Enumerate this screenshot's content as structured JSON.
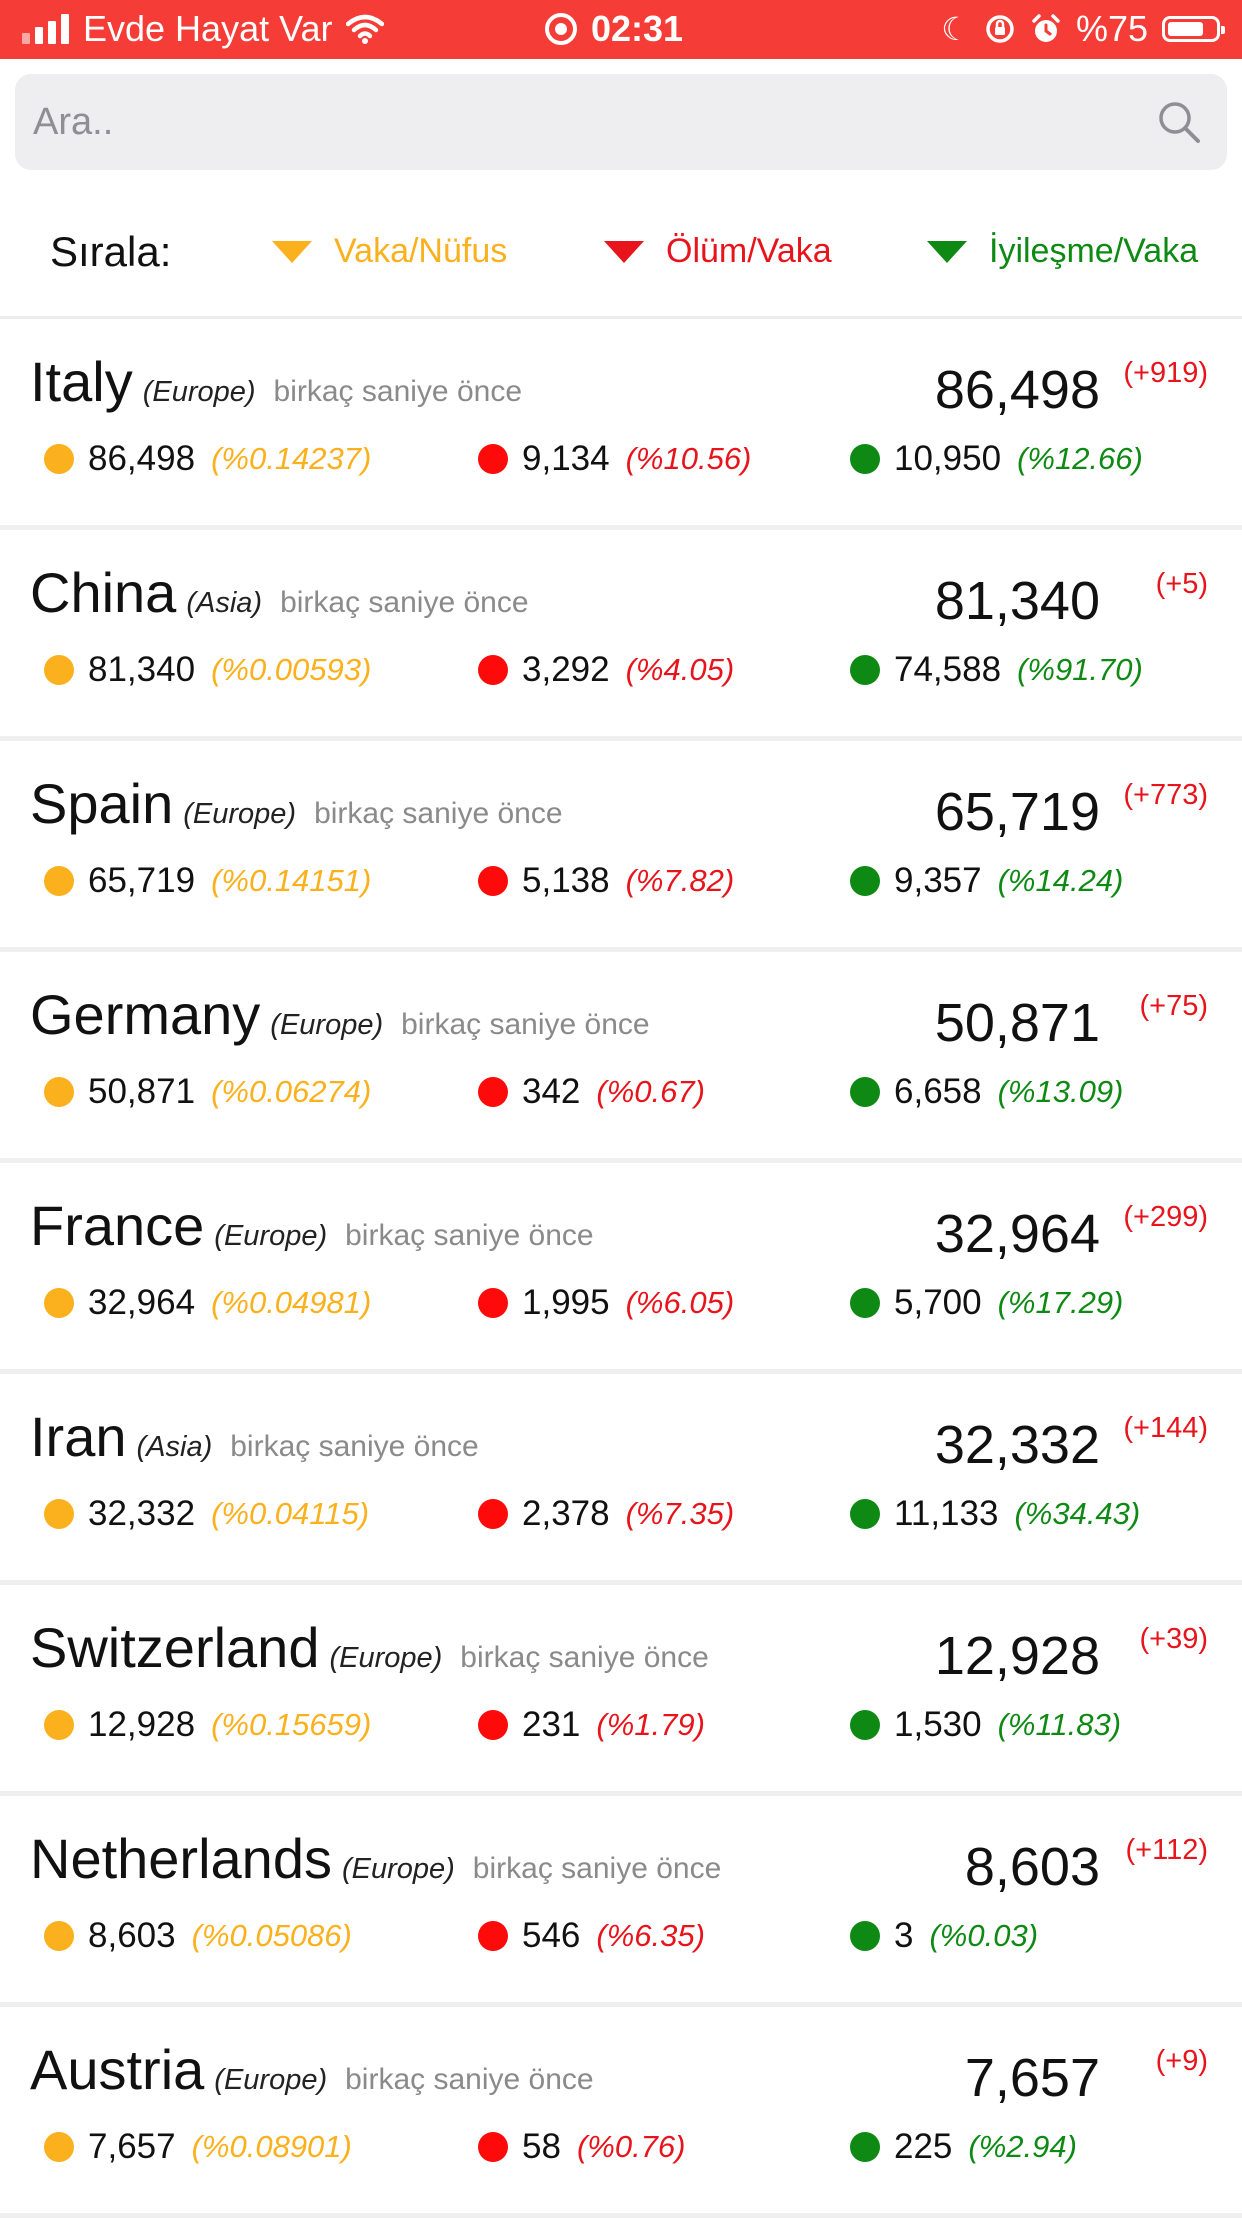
{
  "status_bar": {
    "carrier": "Evde Hayat Var",
    "time": "02:31",
    "battery": "%75",
    "battery_level": 0.75
  },
  "search": {
    "placeholder": "Ara.."
  },
  "sort": {
    "label": "Sırala:",
    "options": [
      {
        "label": "Vaka/Nüfus",
        "color": "#fbb01d"
      },
      {
        "label": "Ölüm/Vaka",
        "color": "#e8141c"
      },
      {
        "label": "İyileşme/Vaka",
        "color": "#0e8a14"
      }
    ]
  },
  "colors": {
    "cases": "#fbb01d",
    "deaths": "#ff0a0a",
    "recovered": "#0e8a14",
    "header": "#f53c36"
  },
  "countries": [
    {
      "name": "Italy",
      "continent": "(Europe)",
      "updated": "birkaç saniye önce",
      "total": "86,498",
      "delta": "(+919)",
      "cases": "86,498",
      "cases_pct": "(%0.14237)",
      "deaths": "9,134",
      "deaths_pct": "(%10.56)",
      "recovered": "10,950",
      "recovered_pct": "(%12.66)"
    },
    {
      "name": "China",
      "continent": "(Asia)",
      "updated": "birkaç saniye önce",
      "total": "81,340",
      "delta": "(+5)",
      "cases": "81,340",
      "cases_pct": "(%0.00593)",
      "deaths": "3,292",
      "deaths_pct": "(%4.05)",
      "recovered": "74,588",
      "recovered_pct": "(%91.70)"
    },
    {
      "name": "Spain",
      "continent": "(Europe)",
      "updated": "birkaç saniye önce",
      "total": "65,719",
      "delta": "(+773)",
      "cases": "65,719",
      "cases_pct": "(%0.14151)",
      "deaths": "5,138",
      "deaths_pct": "(%7.82)",
      "recovered": "9,357",
      "recovered_pct": "(%14.24)"
    },
    {
      "name": "Germany",
      "continent": "(Europe)",
      "updated": "birkaç saniye önce",
      "total": "50,871",
      "delta": "(+75)",
      "cases": "50,871",
      "cases_pct": "(%0.06274)",
      "deaths": "342",
      "deaths_pct": "(%0.67)",
      "recovered": "6,658",
      "recovered_pct": "(%13.09)"
    },
    {
      "name": "France",
      "continent": "(Europe)",
      "updated": "birkaç saniye önce",
      "total": "32,964",
      "delta": "(+299)",
      "cases": "32,964",
      "cases_pct": "(%0.04981)",
      "deaths": "1,995",
      "deaths_pct": "(%6.05)",
      "recovered": "5,700",
      "recovered_pct": "(%17.29)"
    },
    {
      "name": "Iran",
      "continent": "(Asia)",
      "updated": "birkaç saniye önce",
      "total": "32,332",
      "delta": "(+144)",
      "cases": "32,332",
      "cases_pct": "(%0.04115)",
      "deaths": "2,378",
      "deaths_pct": "(%7.35)",
      "recovered": "11,133",
      "recovered_pct": "(%34.43)"
    },
    {
      "name": "Switzerland",
      "continent": "(Europe)",
      "updated": "birkaç saniye önce",
      "total": "12,928",
      "delta": "(+39)",
      "cases": "12,928",
      "cases_pct": "(%0.15659)",
      "deaths": "231",
      "deaths_pct": "(%1.79)",
      "recovered": "1,530",
      "recovered_pct": "(%11.83)"
    },
    {
      "name": "Netherlands",
      "continent": "(Europe)",
      "updated": "birkaç saniye önce",
      "total": "8,603",
      "delta": "(+112)",
      "cases": "8,603",
      "cases_pct": "(%0.05086)",
      "deaths": "546",
      "deaths_pct": "(%6.35)",
      "recovered": "3",
      "recovered_pct": "(%0.03)"
    },
    {
      "name": "Austria",
      "continent": "(Europe)",
      "updated": "birkaç saniye önce",
      "total": "7,657",
      "delta": "(+9)",
      "cases": "7,657",
      "cases_pct": "(%0.08901)",
      "deaths": "58",
      "deaths_pct": "(%0.76)",
      "recovered": "225",
      "recovered_pct": "(%2.94)"
    }
  ]
}
